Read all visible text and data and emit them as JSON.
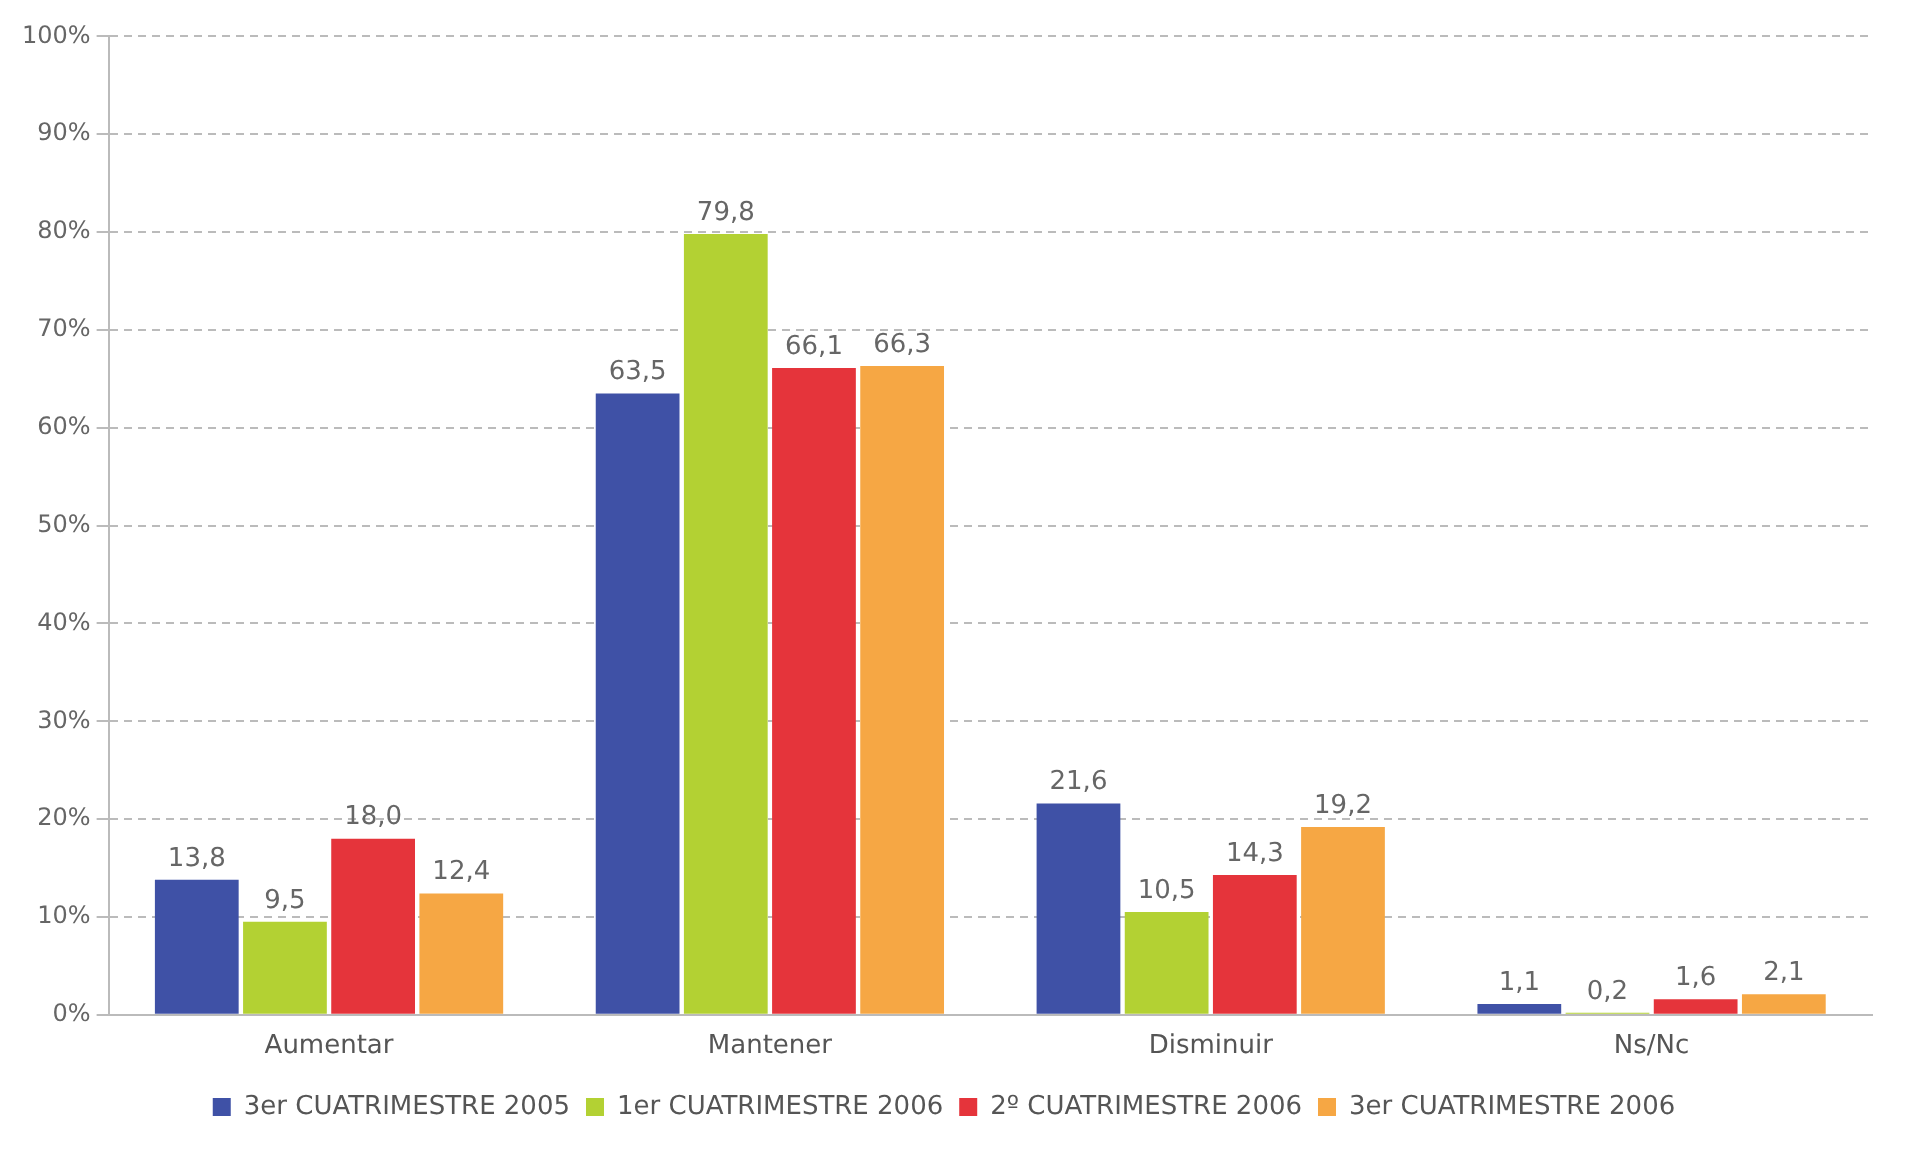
{
  "chart_data": {
    "type": "bar",
    "categories": [
      "Aumentar",
      "Mantener",
      "Disminuir",
      "Ns/Nc"
    ],
    "series": [
      {
        "name": "3er CUATRIMESTRE 2005",
        "color": "#3f51a6",
        "values": [
          13.8,
          63.5,
          21.6,
          1.1
        ],
        "value_labels": [
          "13,8",
          "63,5",
          "21,6",
          "1,1"
        ]
      },
      {
        "name": "1er CUATRIMESTRE 2006",
        "color": "#b3d133",
        "values": [
          9.5,
          79.8,
          10.5,
          0.2
        ],
        "value_labels": [
          "9,5",
          "79,8",
          "10,5",
          "0,2"
        ]
      },
      {
        "name": "2º CUATRIMESTRE 2006",
        "color": "#e5343b",
        "values": [
          18.0,
          66.1,
          14.3,
          1.6
        ],
        "value_labels": [
          "18,0",
          "66,1",
          "14,3",
          "1,6"
        ]
      },
      {
        "name": "3er CUATRIMESTRE 2006",
        "color": "#f6a744",
        "values": [
          12.4,
          66.3,
          19.2,
          2.1
        ],
        "value_labels": [
          "12,4",
          "66,3",
          "19,2",
          "2,1"
        ]
      }
    ],
    "ylim": [
      0,
      100
    ],
    "yticks": [
      {
        "value": 0,
        "label": "0%"
      },
      {
        "value": 10,
        "label": "10%"
      },
      {
        "value": 20,
        "label": "20%"
      },
      {
        "value": 30,
        "label": "30%"
      },
      {
        "value": 40,
        "label": "40%"
      },
      {
        "value": 50,
        "label": "50%"
      },
      {
        "value": 60,
        "label": "60%"
      },
      {
        "value": 70,
        "label": "70%"
      },
      {
        "value": 80,
        "label": "80%"
      },
      {
        "value": 90,
        "label": "90%"
      },
      {
        "value": 100,
        "label": "100%"
      }
    ],
    "grid": "y",
    "legend": "bottom"
  }
}
